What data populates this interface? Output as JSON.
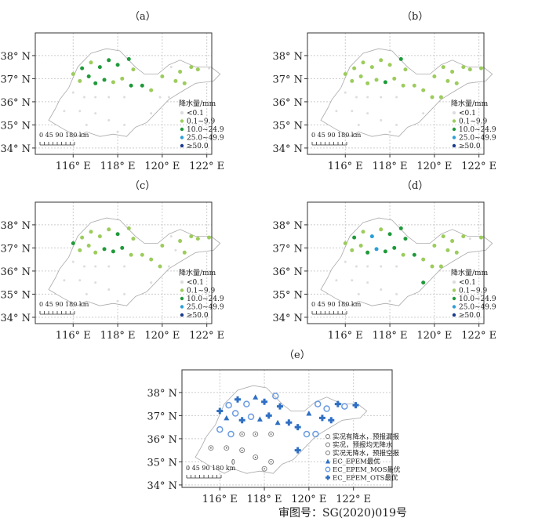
{
  "panels": [
    {
      "id": "a",
      "label": "（a）",
      "type": "precip",
      "cats": "1212222112221122110111011000000000000000"
    },
    {
      "id": "b",
      "label": "（b）",
      "type": "precip",
      "cats": "1111112111112111111111111110000000000000"
    },
    {
      "id": "c",
      "label": "（c）",
      "type": "precip",
      "cats": "2111121111122211110111101100000000000000"
    },
    {
      "id": "d",
      "label": "（d）",
      "type": "precip",
      "cats": "1213122211232212111110111112000000000000"
    },
    {
      "id": "e",
      "label": "（e）",
      "type": "verify",
      "cats": "totoetoteotoetetteoototttootoonnnnnnnnmn"
    }
  ],
  "stations": [
    [
      116.0,
      37.2
    ],
    [
      116.4,
      37.45
    ],
    [
      116.8,
      37.7
    ],
    [
      117.2,
      37.5
    ],
    [
      117.6,
      37.8
    ],
    [
      118.0,
      37.6
    ],
    [
      118.5,
      37.85
    ],
    [
      118.7,
      37.4
    ],
    [
      116.3,
      36.9
    ],
    [
      116.7,
      37.1
    ],
    [
      117.0,
      36.8
    ],
    [
      117.4,
      36.95
    ],
    [
      117.8,
      36.85
    ],
    [
      118.2,
      37.0
    ],
    [
      118.6,
      36.7
    ],
    [
      119.1,
      36.7
    ],
    [
      119.5,
      36.5
    ],
    [
      120.0,
      37.1
    ],
    [
      120.4,
      37.5
    ],
    [
      120.8,
      37.3
    ],
    [
      121.3,
      37.5
    ],
    [
      121.6,
      37.4
    ],
    [
      122.1,
      37.45
    ],
    [
      120.6,
      36.9
    ],
    [
      121.0,
      36.8
    ],
    [
      119.9,
      36.2
    ],
    [
      120.3,
      36.2
    ],
    [
      119.5,
      35.5
    ],
    [
      116.0,
      36.4
    ],
    [
      116.5,
      36.2
    ],
    [
      117.0,
      36.2
    ],
    [
      117.6,
      36.2
    ],
    [
      118.3,
      36.2
    ],
    [
      115.6,
      35.6
    ],
    [
      116.3,
      35.6
    ],
    [
      117.0,
      35.5
    ],
    [
      117.6,
      35.2
    ],
    [
      118.3,
      35.0
    ],
    [
      116.6,
      35.0
    ],
    [
      118.0,
      34.7
    ]
  ],
  "axes": {
    "x_ticks": [
      "116° E",
      "118° E",
      "120° E",
      "122° E"
    ],
    "x_values": [
      116,
      118,
      120,
      122
    ],
    "y_ticks": [
      "38° N",
      "37° N",
      "36° N",
      "35° N",
      "34° N"
    ],
    "y_values": [
      38,
      37,
      36,
      35,
      34
    ]
  },
  "scale_bar": {
    "ticks": "0  45 90      180 km"
  },
  "precip_legend": {
    "title": "降水量/mm",
    "items": [
      {
        "label": "<0.1",
        "color": "#dddddd"
      },
      {
        "label": "0.1~9.9",
        "color": "#9ccc5c"
      },
      {
        "label": "10.0~24.9",
        "color": "#1f9a3a"
      },
      {
        "label": "25.0~49.9",
        "color": "#2b9ed8"
      },
      {
        "label": "≥50.0",
        "color": "#1b3b8c"
      }
    ]
  },
  "verify_legend": {
    "items": [
      {
        "key": "m",
        "label": "实况有降水，预报漏报"
      },
      {
        "key": "n",
        "label": "实况，预报均无降水"
      },
      {
        "key": "f",
        "label": "实况无降水，预报空报"
      },
      {
        "key": "e",
        "label": "EC_EPEM最优"
      },
      {
        "key": "o",
        "label": "EC_EPEM_MOS最优"
      },
      {
        "key": "t",
        "label": "EC_EPEM_OTS最优"
      }
    ]
  },
  "accent": "#2e6fc4",
  "footer": "审图号：SG(2020)019号"
}
